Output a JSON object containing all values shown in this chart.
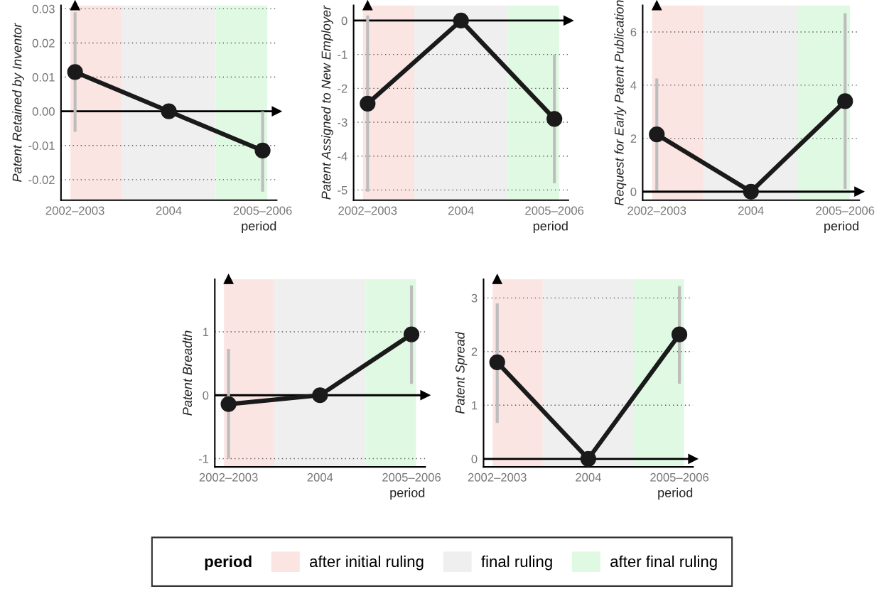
{
  "chart_data": [
    {
      "type": "line",
      "ylabel": "Patent Retained by Inventor",
      "xlabel": "period",
      "categories": [
        "2002–2003",
        "2004",
        "2005–2006"
      ],
      "values": [
        0.0115,
        0,
        -0.0115
      ],
      "errors": [
        [
          -0.006,
          0.029
        ],
        null,
        [
          -0.0235,
          0.0
        ]
      ],
      "color": "#1a1a1a",
      "marker": "circle",
      "ylim": [
        -0.026,
        0.031
      ],
      "yticks": [
        -0.02,
        -0.01,
        {
          "value": 0,
          "label": "0.00"
        },
        0.01,
        0.02,
        0.03
      ],
      "grid": "y",
      "ref_lines": [
        {
          "axis": "y",
          "value": 0,
          "color": "#000000"
        }
      ],
      "bands": [
        {
          "axis": "x",
          "from": "2002–2003",
          "to": "2002–2003",
          "color": "#fbe5e3"
        },
        {
          "axis": "x",
          "from": "2004",
          "to": "2004",
          "color": "#efefef"
        },
        {
          "axis": "x",
          "from": "2005–2006",
          "to": "2005–2006",
          "color": "#e0f9e3"
        }
      ]
    },
    {
      "type": "line",
      "ylabel": "Patent Assigned to New Employer",
      "xlabel": "period",
      "categories": [
        "2002–2003",
        "2004",
        "2005–2006"
      ],
      "values": [
        -2.45,
        0,
        -2.9
      ],
      "errors": [
        [
          -5.05,
          0.15
        ],
        null,
        [
          -4.8,
          -1.0
        ]
      ],
      "color": "#1a1a1a",
      "marker": "circle",
      "ylim": [
        -5.3,
        0.45
      ],
      "yticks": [
        -5,
        -4,
        -3,
        -2,
        -1,
        0
      ],
      "grid": "y",
      "ref_lines": [
        {
          "axis": "y",
          "value": 0,
          "color": "#000000"
        }
      ],
      "bands": [
        {
          "axis": "x",
          "from": "2002–2003",
          "to": "2002–2003",
          "color": "#fbe5e3"
        },
        {
          "axis": "x",
          "from": "2004",
          "to": "2004",
          "color": "#efefef"
        },
        {
          "axis": "x",
          "from": "2005–2006",
          "to": "2005–2006",
          "color": "#e0f9e3"
        }
      ]
    },
    {
      "type": "line",
      "ylabel": "Request for Early Patent Publication",
      "xlabel": "period",
      "categories": [
        "2002–2003",
        "2004",
        "2005–2006"
      ],
      "values": [
        2.15,
        0,
        3.4
      ],
      "errors": [
        [
          0.05,
          4.25
        ],
        null,
        [
          0.1,
          6.7
        ]
      ],
      "color": "#1a1a1a",
      "marker": "circle",
      "ylim": [
        -0.32,
        7.0
      ],
      "yticks": [
        0,
        2,
        4,
        6
      ],
      "grid": "y",
      "ref_lines": [
        {
          "axis": "y",
          "value": 0,
          "color": "#000000"
        }
      ],
      "bands": [
        {
          "axis": "x",
          "from": "2002–2003",
          "to": "2002–2003",
          "color": "#fbe5e3"
        },
        {
          "axis": "x",
          "from": "2004",
          "to": "2004",
          "color": "#efefef"
        },
        {
          "axis": "x",
          "from": "2005–2006",
          "to": "2005–2006",
          "color": "#e0f9e3"
        }
      ]
    },
    {
      "type": "line",
      "ylabel": "Patent Breadth",
      "xlabel": "period",
      "categories": [
        "2002–2003",
        "2004",
        "2005–2006"
      ],
      "values": [
        -0.14,
        0,
        0.96
      ],
      "errors": [
        [
          -1.0,
          0.73
        ],
        null,
        [
          0.18,
          1.73
        ]
      ],
      "color": "#1a1a1a",
      "marker": "circle",
      "ylim": [
        -1.13,
        1.83
      ],
      "yticks": [
        -1,
        0,
        1
      ],
      "grid": "y",
      "ref_lines": [
        {
          "axis": "y",
          "value": 0,
          "color": "#000000"
        }
      ],
      "bands": [
        {
          "axis": "x",
          "from": "2002–2003",
          "to": "2002–2003",
          "color": "#fbe5e3"
        },
        {
          "axis": "x",
          "from": "2004",
          "to": "2004",
          "color": "#efefef"
        },
        {
          "axis": "x",
          "from": "2005–2006",
          "to": "2005–2006",
          "color": "#e0f9e3"
        }
      ]
    },
    {
      "type": "line",
      "ylabel": "Patent Spread",
      "xlabel": "period",
      "categories": [
        "2002–2003",
        "2004",
        "2005–2006"
      ],
      "values": [
        1.8,
        0,
        2.32
      ],
      "errors": [
        [
          0.67,
          2.9
        ],
        null,
        [
          1.4,
          3.22
        ]
      ],
      "color": "#1a1a1a",
      "marker": "circle",
      "ylim": [
        -0.15,
        3.35
      ],
      "yticks": [
        0,
        1,
        2,
        3
      ],
      "grid": "y",
      "ref_lines": [
        {
          "axis": "y",
          "value": 0,
          "color": "#000000"
        }
      ],
      "bands": [
        {
          "axis": "x",
          "from": "2002–2003",
          "to": "2002–2003",
          "label": "after initial ruling",
          "color": "#fbe5e3"
        },
        {
          "axis": "x",
          "from": "2004",
          "to": "2004",
          "label": "final ruling",
          "color": "#efefef"
        },
        {
          "axis": "x",
          "from": "2005–2006",
          "to": "2005–2006",
          "label": "after final ruling",
          "color": "#e0f9e3"
        }
      ],
      "legend": "bottom",
      "legend_title": "period"
    }
  ]
}
